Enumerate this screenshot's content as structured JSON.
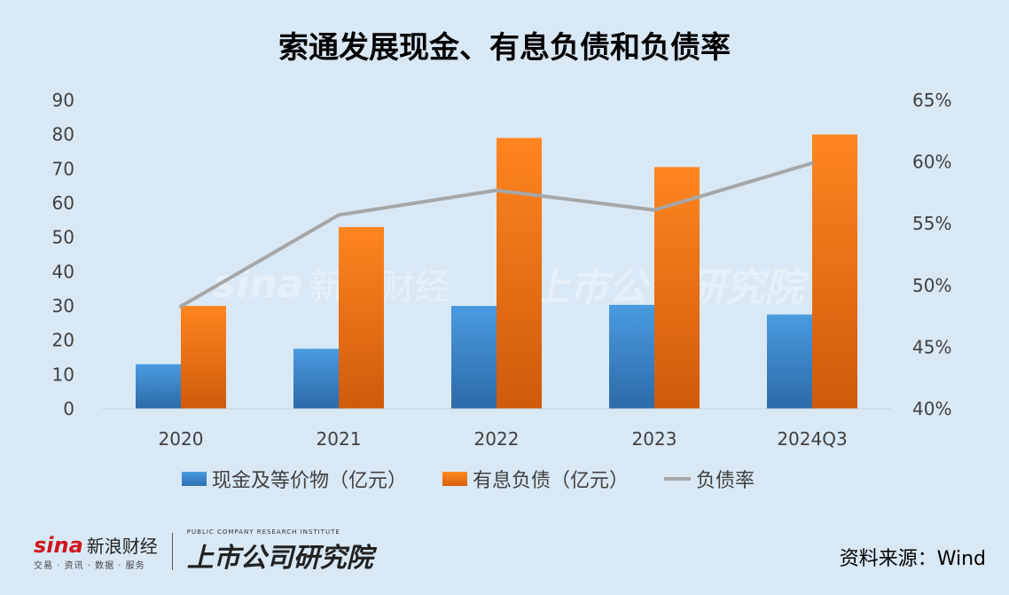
{
  "title": "索通发展现金、有息负债和负债率",
  "chart_data": {
    "type": "bar+line",
    "categories": [
      "2020",
      "2021",
      "2022",
      "2023",
      "2024Q3"
    ],
    "series": [
      {
        "name": "现金及等价物（亿元）",
        "type": "bar",
        "axis": "left",
        "color": "#3a7fc6",
        "values": [
          13,
          17.5,
          30,
          30.3,
          27.5
        ]
      },
      {
        "name": "有息负债（亿元）",
        "type": "bar",
        "axis": "left",
        "color": "#f07a1a",
        "values": [
          30,
          53,
          79,
          70.5,
          80
        ]
      },
      {
        "name": "负债率",
        "type": "line",
        "axis": "right",
        "color": "#a6a6a6",
        "values": [
          48.3,
          55.7,
          57.7,
          56.1,
          59.9
        ]
      }
    ],
    "ylim": [
      0,
      90
    ],
    "yticks": [
      "0",
      "10",
      "20",
      "30",
      "40",
      "50",
      "60",
      "70",
      "80",
      "90"
    ],
    "y2lim": [
      40,
      65
    ],
    "y2ticks": [
      "40%",
      "45%",
      "50%",
      "55%",
      "60%",
      "65%"
    ],
    "grid": false,
    "legend": "bottom"
  },
  "source": "资料来源：Wind",
  "footer": {
    "sina_logo": "sina",
    "sina_name": "新浪财经",
    "sina_tagline": "交易 · 资讯 · 数据 · 服务",
    "institute_name": "上市公司研究院",
    "institute_en": "PUBLIC COMPANY RESEARCH INSTITUTE"
  },
  "colors": {
    "background": "#d9e8f5",
    "bar1": "#3a7fc6",
    "bar2": "#f07a1a",
    "line": "#a6a6a6"
  }
}
